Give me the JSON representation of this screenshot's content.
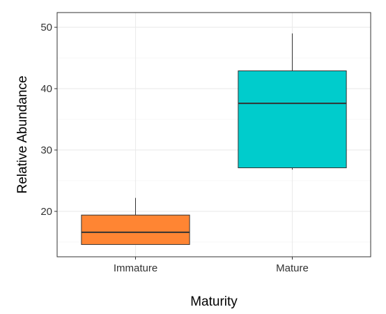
{
  "chart_data": {
    "type": "boxplot",
    "xlabel": "Maturity",
    "ylabel": "Relative Abundance",
    "ylim": [
      12.6,
      52.4
    ],
    "yticks": [
      20,
      30,
      40,
      50
    ],
    "grid": true,
    "legend": "none",
    "categories": [
      "Immature",
      "Mature"
    ],
    "boxes": [
      {
        "category": "Immature",
        "whisker_low": 14.6,
        "q1": 14.6,
        "median": 16.6,
        "q3": 19.4,
        "whisker_high": 22.2,
        "color": "#FF8533"
      },
      {
        "category": "Mature",
        "whisker_low": 26.8,
        "q1": 27.1,
        "median": 37.6,
        "q3": 42.9,
        "whisker_high": 49.0,
        "color": "#00CCCC"
      }
    ]
  }
}
